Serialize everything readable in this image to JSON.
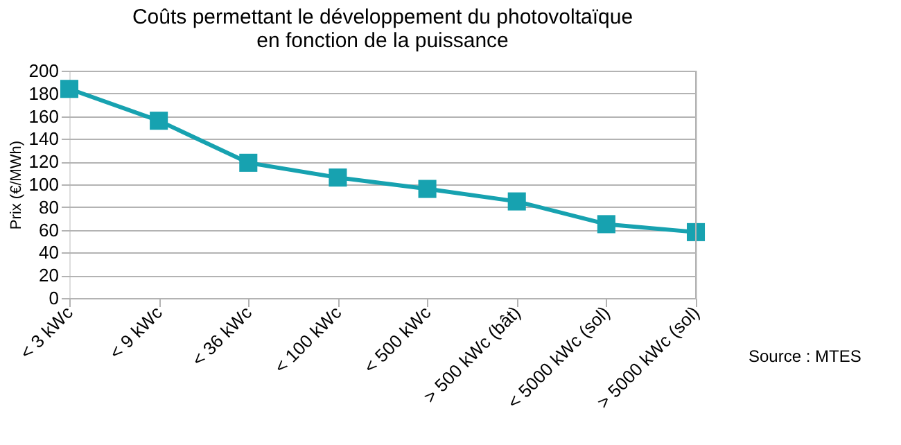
{
  "chart_data": {
    "type": "line",
    "title": [
      "Coûts permettant le développement du photovoltaïque",
      "en fonction de la puissance"
    ],
    "ylabel": "Prix (€/MWh)",
    "categories": [
      "< 3 kWc",
      "< 9 kWc",
      "< 36 kWc",
      "< 100 kWc",
      "< 500 kWc",
      "> 500 kWc (bât)",
      "< 5000 kWc (sol)",
      "> 5000 kWc (sol)"
    ],
    "series": [
      {
        "color": "#17a2b0",
        "values": [
          184,
          156,
          119,
          106,
          96,
          85,
          65,
          58
        ]
      }
    ],
    "ylim": [
      0,
      200
    ],
    "yticks": [
      0,
      20,
      40,
      60,
      80,
      100,
      120,
      140,
      160,
      180,
      200
    ],
    "grid": "y",
    "marker": "square",
    "line_style": "solid",
    "annotations": [
      "Source : MTES"
    ]
  }
}
